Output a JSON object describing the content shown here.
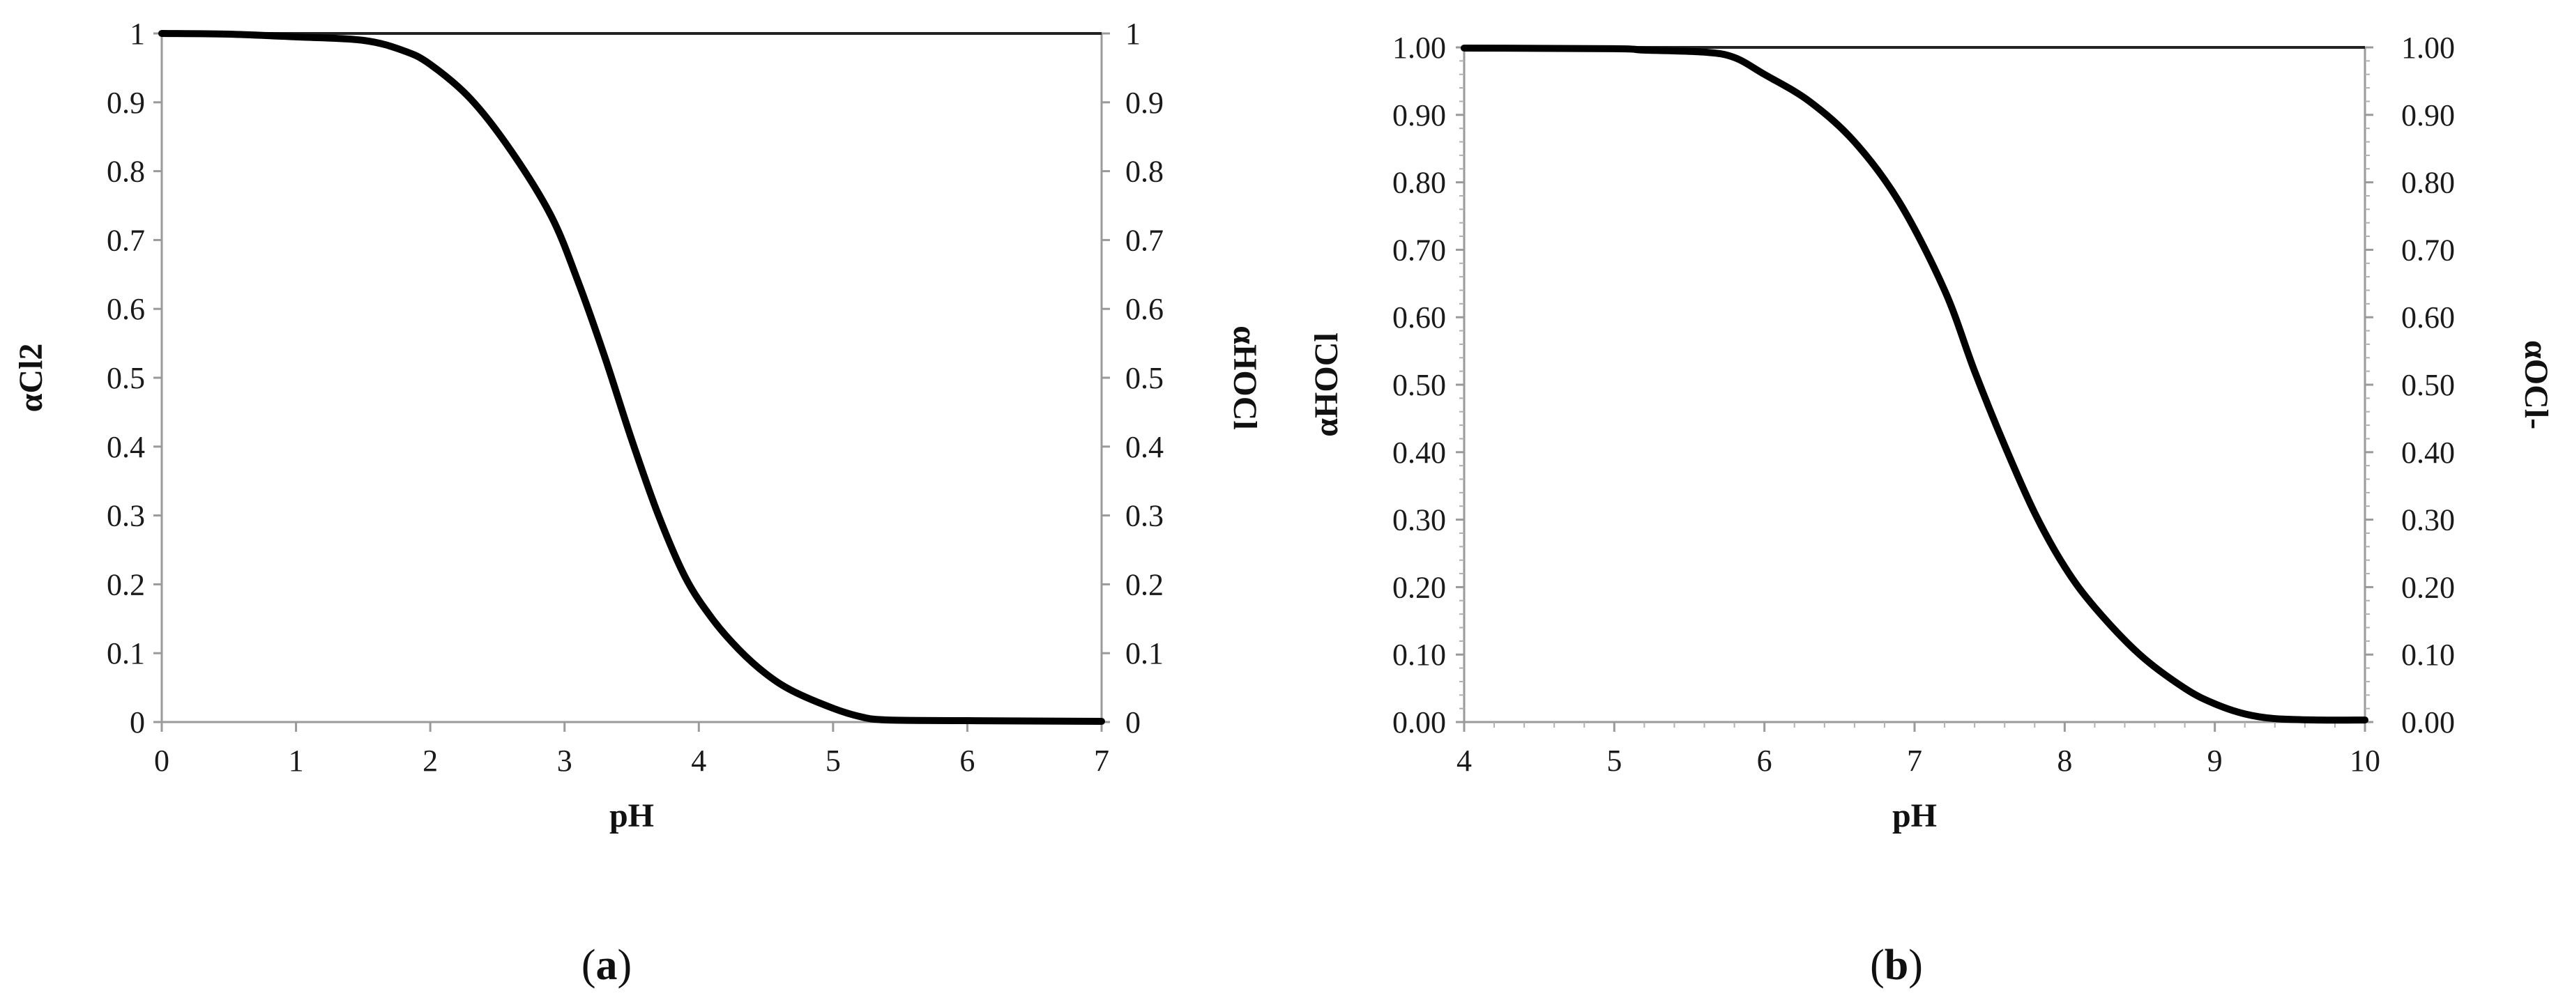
{
  "chart_data": [
    {
      "type": "line",
      "panel_label": "a",
      "xlabel": "pH",
      "ylabel_left": "αCl2",
      "ylabel_right": "αHOCl",
      "xlim": [
        0,
        7
      ],
      "ylim": [
        0,
        1
      ],
      "right_axis_reversed": true,
      "grid": false,
      "x_ticks": [
        "0",
        "1",
        "2",
        "3",
        "4",
        "5",
        "6",
        "7"
      ],
      "y_ticks_left": [
        "0",
        "0.1",
        "0.2",
        "0.3",
        "0.4",
        "0.5",
        "0.6",
        "0.7",
        "0.8",
        "0.9",
        "1"
      ],
      "y_ticks_right": [
        "1",
        "0.9",
        "0.8",
        "0.7",
        "0.6",
        "0.5",
        "0.4",
        "0.3",
        "0.2",
        "0.1",
        "0"
      ],
      "series": [
        {
          "x": [
            0,
            0.5,
            1.0,
            1.5,
            1.8,
            2.0,
            2.3,
            2.6,
            2.9,
            3.1,
            3.3,
            3.5,
            3.7,
            3.9,
            4.1,
            4.3,
            4.5,
            4.7,
            5.0,
            5.2,
            5.4,
            6.0,
            7.0
          ],
          "y": [
            1.0,
            0.999,
            0.995,
            0.99,
            0.975,
            0.955,
            0.905,
            0.83,
            0.735,
            0.64,
            0.53,
            0.41,
            0.3,
            0.21,
            0.15,
            0.105,
            0.07,
            0.045,
            0.02,
            0.008,
            0.003,
            0.002,
            0.001
          ]
        }
      ]
    },
    {
      "type": "line",
      "panel_label": "b",
      "xlabel": "pH",
      "ylabel_left": "αHOCl",
      "ylabel_right": "αOCl-",
      "xlim": [
        4,
        10
      ],
      "ylim": [
        0,
        1
      ],
      "right_axis_reversed": true,
      "grid": false,
      "x_ticks": [
        "4",
        "5",
        "6",
        "7",
        "8",
        "9",
        "10"
      ],
      "y_ticks_left": [
        "0.00",
        "0.10",
        "0.20",
        "0.30",
        "0.40",
        "0.50",
        "0.60",
        "0.70",
        "0.80",
        "0.90",
        "1.00"
      ],
      "y_ticks_right": [
        "1.00",
        "0.90",
        "0.80",
        "0.70",
        "0.60",
        "0.50",
        "0.40",
        "0.30",
        "0.20",
        "0.10",
        "0.00"
      ],
      "series": [
        {
          "x": [
            4,
            5.0,
            5.2,
            5.6,
            5.8,
            6.0,
            6.3,
            6.6,
            6.9,
            7.2,
            7.4,
            7.6,
            7.8,
            8.0,
            8.2,
            8.5,
            8.8,
            9.0,
            9.2,
            9.4,
            9.7,
            10.0
          ],
          "y": [
            0.999,
            0.998,
            0.996,
            0.993,
            0.985,
            0.96,
            0.92,
            0.86,
            0.77,
            0.64,
            0.52,
            0.41,
            0.31,
            0.23,
            0.17,
            0.1,
            0.05,
            0.027,
            0.012,
            0.005,
            0.003,
            0.003
          ]
        }
      ]
    }
  ]
}
